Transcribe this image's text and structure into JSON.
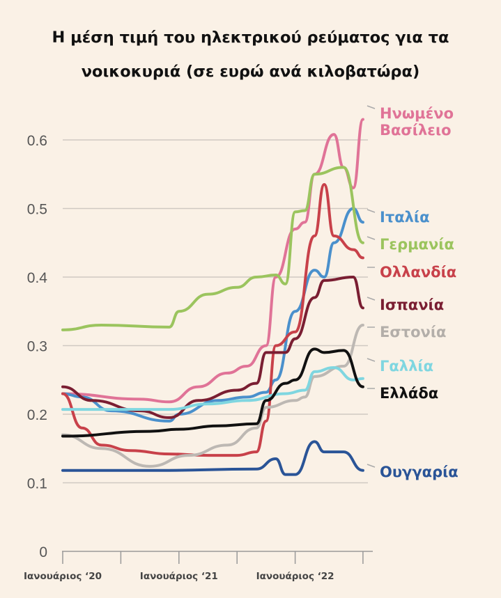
{
  "chart_data": {
    "type": "line",
    "title": "Η μέση τιμή του ηλεκτρικού ρεύματος για τα νοικοκυριά (σε ευρώ ανά κιλοβατώρα)",
    "xlabel": "",
    "ylabel": "",
    "ylim": [
      0,
      0.65
    ],
    "yticks": [
      0,
      0.1,
      0.2,
      0.3,
      0.4,
      0.5,
      0.6
    ],
    "ytick_labels": [
      "0",
      "0.1",
      "0.2",
      "0.3",
      "0.4",
      "0.5",
      "0.6"
    ],
    "xlim": [
      "2020-01",
      "2022-08"
    ],
    "xtick_labels": [
      "Ιανουάριος ‘20",
      "Ιανουάριος ‘21",
      "Ιανουάριος ‘22"
    ],
    "grid": true,
    "legend": "right, labels at line ends",
    "series": [
      {
        "name": "Ηνωμένο Βασίλειο",
        "color": "#e07397",
        "points": [
          [
            "2020-01",
            0.23
          ],
          [
            "2020-09",
            0.222
          ],
          [
            "2020-12",
            0.218
          ],
          [
            "2021-03",
            0.24
          ],
          [
            "2021-06",
            0.26
          ],
          [
            "2021-08",
            0.27
          ],
          [
            "2021-10",
            0.3
          ],
          [
            "2021-11",
            0.4
          ],
          [
            "2022-01",
            0.47
          ],
          [
            "2022-02",
            0.48
          ],
          [
            "2022-03",
            0.55
          ],
          [
            "2022-05",
            0.608
          ],
          [
            "2022-06",
            0.56
          ],
          [
            "2022-07",
            0.53
          ],
          [
            "2022-08",
            0.63
          ]
        ]
      },
      {
        "name": "Ιταλία",
        "color": "#4a90cc",
        "points": [
          [
            "2020-01",
            0.23
          ],
          [
            "2020-03",
            0.225
          ],
          [
            "2020-06",
            0.205
          ],
          [
            "2020-12",
            0.19
          ],
          [
            "2021-01",
            0.2
          ],
          [
            "2021-05",
            0.22
          ],
          [
            "2021-08",
            0.225
          ],
          [
            "2021-10",
            0.232
          ],
          [
            "2021-11",
            0.25
          ],
          [
            "2022-01",
            0.35
          ],
          [
            "2022-03",
            0.41
          ],
          [
            "2022-04",
            0.4
          ],
          [
            "2022-05",
            0.45
          ],
          [
            "2022-07",
            0.5
          ],
          [
            "2022-08",
            0.48
          ]
        ]
      },
      {
        "name": "Γερμανία",
        "color": "#9bc45e",
        "points": [
          [
            "2020-01",
            0.323
          ],
          [
            "2020-05",
            0.33
          ],
          [
            "2020-12",
            0.327
          ],
          [
            "2021-01",
            0.35
          ],
          [
            "2021-04",
            0.375
          ],
          [
            "2021-07",
            0.385
          ],
          [
            "2021-09",
            0.4
          ],
          [
            "2021-11",
            0.403
          ],
          [
            "2021-12",
            0.39
          ],
          [
            "2022-01",
            0.495
          ],
          [
            "2022-02",
            0.497
          ],
          [
            "2022-03",
            0.55
          ],
          [
            "2022-06",
            0.56
          ],
          [
            "2022-08",
            0.45
          ]
        ]
      },
      {
        "name": "Ολλανδία",
        "color": "#c8414a",
        "points": [
          [
            "2020-01",
            0.23
          ],
          [
            "2020-03",
            0.18
          ],
          [
            "2020-05",
            0.155
          ],
          [
            "2020-08",
            0.147
          ],
          [
            "2020-12",
            0.142
          ],
          [
            "2021-04",
            0.14
          ],
          [
            "2021-07",
            0.14
          ],
          [
            "2021-09",
            0.145
          ],
          [
            "2021-10",
            0.19
          ],
          [
            "2021-11",
            0.3
          ],
          [
            "2022-01",
            0.32
          ],
          [
            "2022-03",
            0.46
          ],
          [
            "2022-04",
            0.535
          ],
          [
            "2022-05",
            0.46
          ],
          [
            "2022-07",
            0.44
          ],
          [
            "2022-08",
            0.428
          ]
        ]
      },
      {
        "name": "Ισπανία",
        "color": "#7a1e32",
        "points": [
          [
            "2020-01",
            0.24
          ],
          [
            "2020-04",
            0.22
          ],
          [
            "2020-09",
            0.205
          ],
          [
            "2020-12",
            0.195
          ],
          [
            "2021-03",
            0.22
          ],
          [
            "2021-07",
            0.235
          ],
          [
            "2021-09",
            0.245
          ],
          [
            "2021-10",
            0.29
          ],
          [
            "2021-12",
            0.29
          ],
          [
            "2022-01",
            0.31
          ],
          [
            "2022-03",
            0.37
          ],
          [
            "2022-04",
            0.395
          ],
          [
            "2022-07",
            0.4
          ],
          [
            "2022-08",
            0.355
          ]
        ]
      },
      {
        "name": "Εστονία",
        "color": "#bdb8b3",
        "points": [
          [
            "2020-01",
            0.17
          ],
          [
            "2020-05",
            0.15
          ],
          [
            "2020-10",
            0.124
          ],
          [
            "2021-02",
            0.14
          ],
          [
            "2021-06",
            0.155
          ],
          [
            "2021-09",
            0.18
          ],
          [
            "2021-10",
            0.21
          ],
          [
            "2022-01",
            0.22
          ],
          [
            "2022-02",
            0.225
          ],
          [
            "2022-03",
            0.255
          ],
          [
            "2022-06",
            0.27
          ],
          [
            "2022-08",
            0.33
          ]
        ]
      },
      {
        "name": "Γαλλία",
        "color": "#7fd6e0",
        "points": [
          [
            "2020-01",
            0.207
          ],
          [
            "2020-12",
            0.207
          ],
          [
            "2021-04",
            0.215
          ],
          [
            "2021-08",
            0.22
          ],
          [
            "2021-12",
            0.23
          ],
          [
            "2022-02",
            0.235
          ],
          [
            "2022-03",
            0.262
          ],
          [
            "2022-05",
            0.268
          ],
          [
            "2022-07",
            0.25
          ],
          [
            "2022-08",
            0.252
          ]
        ]
      },
      {
        "name": "Ελλάδα",
        "color": "#111111",
        "points": [
          [
            "2020-01",
            0.168
          ],
          [
            "2020-10",
            0.175
          ],
          [
            "2021-01",
            0.178
          ],
          [
            "2021-05",
            0.183
          ],
          [
            "2021-09",
            0.186
          ],
          [
            "2021-10",
            0.22
          ],
          [
            "2021-12",
            0.245
          ],
          [
            "2022-01",
            0.25
          ],
          [
            "2022-03",
            0.295
          ],
          [
            "2022-04",
            0.29
          ],
          [
            "2022-06",
            0.293
          ],
          [
            "2022-08",
            0.24
          ]
        ]
      },
      {
        "name": "Ουγγαρία",
        "color": "#2a5497",
        "points": [
          [
            "2020-01",
            0.118
          ],
          [
            "2020-11",
            0.118
          ],
          [
            "2021-09",
            0.12
          ],
          [
            "2021-11",
            0.135
          ],
          [
            "2021-12",
            0.112
          ],
          [
            "2022-01",
            0.112
          ],
          [
            "2022-03",
            0.16
          ],
          [
            "2022-04",
            0.145
          ],
          [
            "2022-06",
            0.145
          ],
          [
            "2022-08",
            0.118
          ]
        ]
      }
    ]
  }
}
